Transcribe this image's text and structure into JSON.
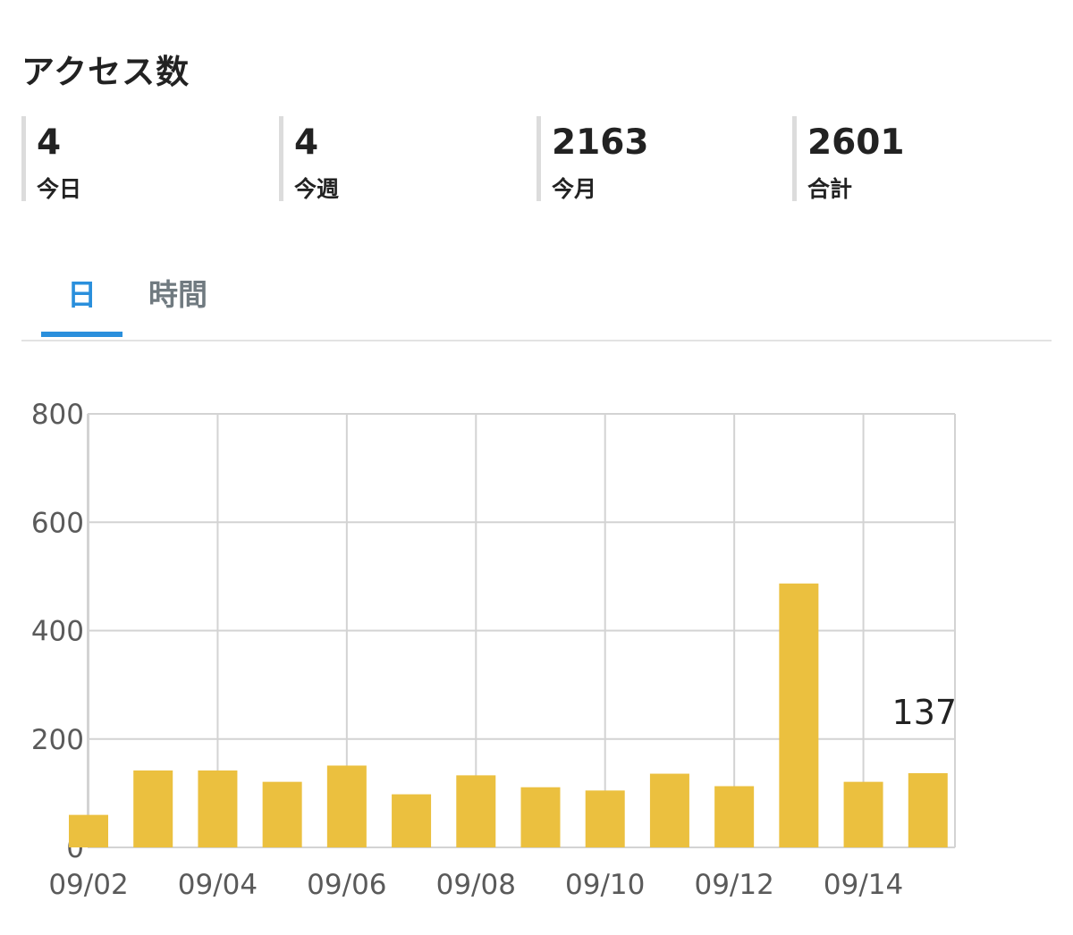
{
  "title": "アクセス数",
  "stats": [
    {
      "value": "4",
      "label": "今日"
    },
    {
      "value": "4",
      "label": "今週"
    },
    {
      "value": "2163",
      "label": "今月"
    },
    {
      "value": "2601",
      "label": "合計"
    }
  ],
  "tabs": [
    {
      "label": "日",
      "active": true
    },
    {
      "label": "時間",
      "active": false
    }
  ],
  "colors": {
    "bar": "#ebc03f",
    "accent": "#2a8fdc",
    "grid": "#d3d3d3"
  },
  "chart_data": {
    "type": "bar",
    "categories": [
      "09/02",
      "09/03",
      "09/04",
      "09/05",
      "09/06",
      "09/07",
      "09/08",
      "09/09",
      "09/10",
      "09/11",
      "09/12",
      "09/13",
      "09/14",
      "09/15"
    ],
    "values": [
      60,
      142,
      142,
      121,
      151,
      98,
      133,
      111,
      105,
      136,
      113,
      487,
      121,
      137
    ],
    "ylim": [
      0,
      800
    ],
    "yticks": [
      0,
      200,
      400,
      600,
      800
    ],
    "xticks": [
      "09/02",
      "09/04",
      "09/06",
      "09/08",
      "09/10",
      "09/12",
      "09/14"
    ],
    "grid": true,
    "data_labels": [
      {
        "category": "09/15",
        "text": "137"
      }
    ]
  }
}
